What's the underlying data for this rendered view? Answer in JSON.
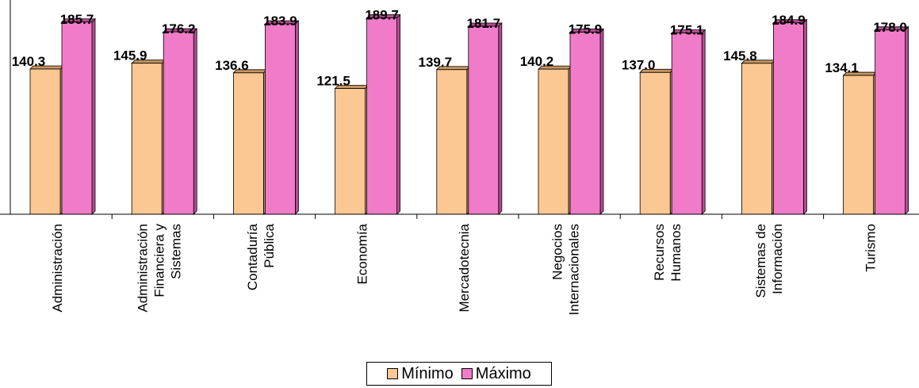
{
  "chart_data": {
    "type": "bar",
    "categories": [
      [
        "Administración"
      ],
      [
        "Administración",
        "Financiera y",
        "Sistemas"
      ],
      [
        "Contaduría",
        "Pública"
      ],
      [
        "Economía"
      ],
      [
        "Mercadotecnia"
      ],
      [
        "Negocios",
        "Internacionales"
      ],
      [
        "Recursos",
        "Humanos"
      ],
      [
        "Sistemas de",
        "Información"
      ],
      [
        "Turismo"
      ]
    ],
    "series": [
      {
        "name": "Mínimo",
        "values": [
          140.3,
          145.9,
          136.6,
          121.5,
          139.7,
          140.2,
          137.0,
          145.8,
          134.1
        ],
        "labels": [
          "140.3",
          "145.9",
          "136.6",
          "121.5",
          "139.7",
          "140.2",
          "137.0",
          "145.8",
          "134.1"
        ]
      },
      {
        "name": "Máximo",
        "values": [
          185.7,
          176.2,
          183.9,
          189.7,
          181.7,
          175.9,
          175.1,
          184.9,
          178.0
        ],
        "labels": [
          "185.7",
          "176.2",
          "183.9",
          "189.7",
          "181.7",
          "175.9",
          "175.1",
          "184.9",
          "178.0"
        ]
      }
    ],
    "colors": {
      "min_face": "#FBC793",
      "min_side": "#C9955F",
      "max_face": "#F07BC8",
      "max_side": "#B84B94"
    },
    "grid": false,
    "legend_position": "bottom"
  },
  "legend": {
    "min_label": "Mínimo",
    "max_label": "Máximo"
  }
}
